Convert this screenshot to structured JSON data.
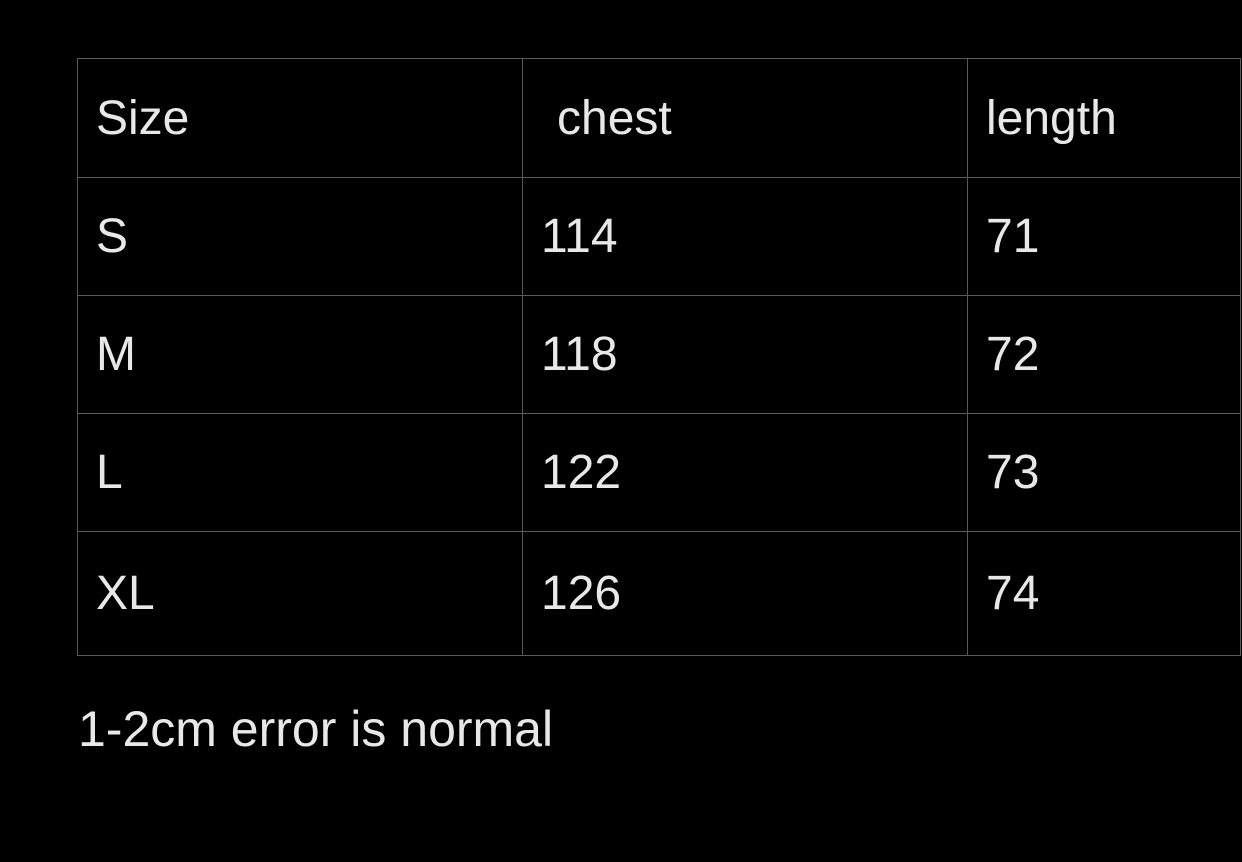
{
  "table": {
    "headers": [
      "Size",
      "chest",
      "length"
    ],
    "rows": [
      [
        "S",
        "114",
        "71"
      ],
      [
        "M",
        "118",
        "72"
      ],
      [
        "L",
        "122",
        "73"
      ],
      [
        "XL",
        "126",
        "74"
      ]
    ]
  },
  "footer_note": "1-2cm error is normal",
  "colors": {
    "background": "#000000",
    "text": "#e8e8e8",
    "border": "#5a5a5a"
  }
}
